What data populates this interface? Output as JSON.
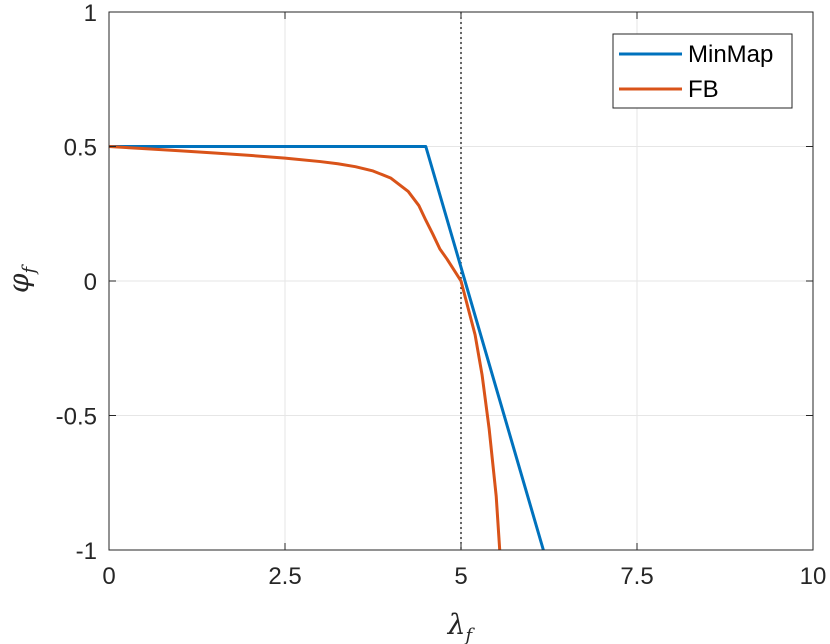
{
  "chart_data": {
    "type": "line",
    "title": "",
    "xlabel_base": "λ",
    "xlabel_sub": "f",
    "ylabel_base": "φ",
    "ylabel_sub": "f",
    "xlim": [
      0,
      10
    ],
    "ylim": [
      -1,
      1
    ],
    "xticks": [
      0,
      2.5,
      5,
      7.5,
      10
    ],
    "xtick_labels": [
      "0",
      "2.5",
      "5",
      "7.5",
      "10"
    ],
    "yticks": [
      -1,
      -0.5,
      0,
      0.5,
      1
    ],
    "ytick_labels": [
      "-1",
      "-0.5",
      "0",
      "0.5",
      "1"
    ],
    "grid": true,
    "legend_position": "top-right",
    "reference_line": {
      "x": 5,
      "style": "dotted"
    },
    "series": [
      {
        "name": "MinMap",
        "color": "#0072BD",
        "x": [
          0,
          4.5,
          6.17
        ],
        "y": [
          0.5,
          0.5,
          -1
        ]
      },
      {
        "name": "FB",
        "color": "#D95319",
        "x": [
          0,
          0.5,
          1,
          1.5,
          2,
          2.5,
          3,
          3.25,
          3.5,
          3.75,
          4,
          4.25,
          4.4,
          4.5,
          4.6,
          4.7,
          4.8,
          4.9,
          5,
          5.1,
          5.2,
          5.3,
          5.4,
          5.5,
          5.55
        ],
        "y": [
          0.5,
          0.492,
          0.484,
          0.476,
          0.467,
          0.457,
          0.444,
          0.436,
          0.425,
          0.409,
          0.383,
          0.333,
          0.281,
          0.226,
          0.174,
          0.119,
          0.082,
          0.041,
          0.0,
          -0.1,
          -0.2,
          -0.35,
          -0.55,
          -0.8,
          -1.0
        ]
      }
    ]
  }
}
